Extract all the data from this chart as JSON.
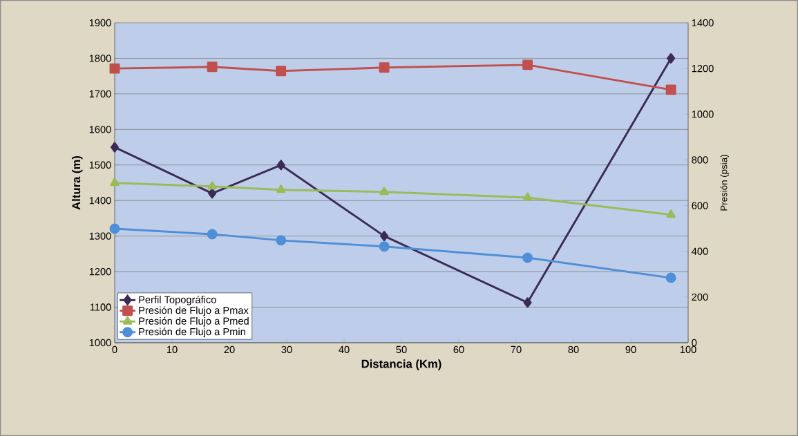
{
  "chart_data": {
    "type": "line",
    "xlabel": "Distancia (Km)",
    "ylabel": "Altura (m)",
    "y2label": "Presión (psia)",
    "xlim": [
      0,
      100
    ],
    "xticks": [
      0,
      10,
      20,
      30,
      40,
      50,
      60,
      70,
      80,
      90,
      100
    ],
    "ylim": [
      1000,
      1900
    ],
    "yticks": [
      1000,
      1100,
      1200,
      1300,
      1400,
      1500,
      1600,
      1700,
      1800,
      1900
    ],
    "y2lim": [
      0,
      1400
    ],
    "y2ticks": [
      0,
      200,
      400,
      600,
      800,
      1000,
      1200,
      1400
    ],
    "grid": "y",
    "legend": "bottom left",
    "line_style": "solid",
    "series": [
      {
        "name": "Perfil Topográfico",
        "color": "#3c2c55",
        "marker": "diamond",
        "x": [
          0,
          17,
          29,
          47,
          72,
          97
        ],
        "values": [
          1550,
          1420,
          1500,
          1300,
          1113,
          1800
        ]
      },
      {
        "name": "Presión de Flujo a Pmax",
        "color": "#c0504d",
        "marker": "square",
        "axis": "y2",
        "x": [
          0,
          17,
          29,
          47,
          72,
          97
        ],
        "values": [
          1200,
          1207,
          1189,
          1204,
          1216,
          1107
        ]
      },
      {
        "name": "Presión de Flujo a Pmed",
        "color": "#9bbb59",
        "marker": "triangle",
        "axis": "y2",
        "x": [
          0,
          17,
          29,
          47,
          72,
          97
        ],
        "values": [
          699,
          684,
          669,
          660,
          635,
          560
        ]
      },
      {
        "name": "Presión de Flujo a Pmin",
        "color": "#4f8fd8",
        "marker": "circle",
        "axis": "y2",
        "x": [
          0,
          17,
          29,
          47,
          72,
          97
        ],
        "values": [
          499,
          475,
          448,
          421,
          372,
          284
        ]
      }
    ]
  }
}
